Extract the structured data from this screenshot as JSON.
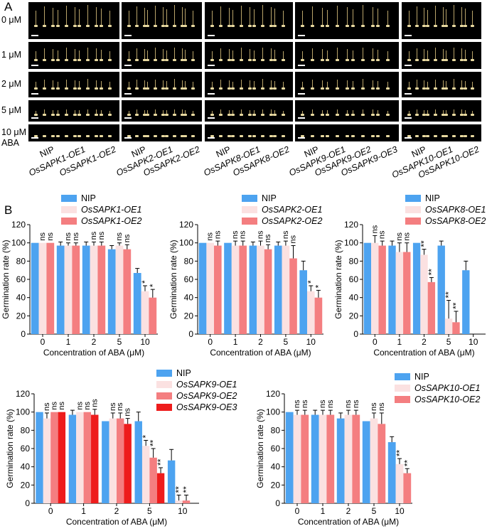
{
  "panel_a": {
    "label": "A",
    "row_labels": [
      "0 μM",
      "1 μM",
      "2 μM",
      "5 μM",
      "10 μM"
    ],
    "treatment_label": "ABA",
    "groups": [
      [
        "NIP",
        "OsSAPK1-OE1",
        "OsSAPK1-OE2"
      ],
      [
        "NIP",
        "OsSAPK2-OE1",
        "OsSAPK2-OE2"
      ],
      [
        "NIP",
        "OsSAPK8-OE1",
        "OsSAPK8-OE2"
      ],
      [
        "NIP",
        "OsSAPK9-OE1",
        "OsSAPK9-OE2",
        "OsSAPK9-OE3"
      ],
      [
        "NIP",
        "OsSAPK10-OE1",
        "OsSAPK10-OE2"
      ]
    ]
  },
  "panel_b": {
    "label": "B"
  },
  "colors": {
    "nip": "#4da3f0",
    "oe1": "#fbe1e1",
    "oe2": "#f47e80",
    "oe3": "#ee1c1c"
  },
  "chart_data": [
    {
      "type": "bar",
      "categories": [
        "0",
        "1",
        "2",
        "5",
        "10"
      ],
      "xlabel": "Concentration of ABA (μM)",
      "ylabel": "Germination rate (%)",
      "ylim": [
        0,
        120
      ],
      "yticks": [
        0,
        20,
        40,
        60,
        80,
        100,
        120
      ],
      "series": [
        {
          "name": "NIP",
          "values": [
            100,
            97,
            97,
            93,
            67
          ],
          "err": [
            0,
            4,
            4,
            4,
            5
          ]
        },
        {
          "name": "OsSAPK1-OE1",
          "values": [
            100,
            97,
            97,
            97,
            47
          ],
          "err": [
            0,
            3,
            4,
            3,
            6
          ]
        },
        {
          "name": "OsSAPK1-OE2",
          "values": [
            100,
            97,
            97,
            93,
            40
          ],
          "err": [
            0,
            3,
            4,
            5,
            9
          ]
        }
      ],
      "annotations": [
        [
          "",
          "ns",
          "ns"
        ],
        [
          "",
          "ns",
          "ns"
        ],
        [
          "",
          "ns",
          "ns"
        ],
        [
          "",
          "ns",
          "ns"
        ],
        [
          "",
          "*",
          "*"
        ]
      ]
    },
    {
      "type": "bar",
      "categories": [
        "0",
        "1",
        "2",
        "5",
        "10"
      ],
      "xlabel": "Concentration of ABA (μM)",
      "ylabel": "Germination rate (%)",
      "ylim": [
        0,
        120
      ],
      "yticks": [
        0,
        20,
        40,
        60,
        80,
        100,
        120
      ],
      "series": [
        {
          "name": "NIP",
          "values": [
            100,
            100,
            97,
            97,
            70
          ],
          "err": [
            0,
            0,
            4,
            4,
            10
          ]
        },
        {
          "name": "OsSAPK2-OE1",
          "values": [
            100,
            97,
            97,
            97,
            47
          ],
          "err": [
            0,
            5,
            5,
            5,
            6
          ]
        },
        {
          "name": "OsSAPK2-OE2",
          "values": [
            97,
            97,
            93,
            83,
            40
          ],
          "err": [
            5,
            5,
            5,
            14,
            8
          ]
        }
      ],
      "annotations": [
        [
          "",
          "ns",
          "ns"
        ],
        [
          "",
          "ns",
          "ns"
        ],
        [
          "",
          "ns",
          "ns"
        ],
        [
          "",
          "ns",
          "ns"
        ],
        [
          "",
          "*",
          "*"
        ]
      ]
    },
    {
      "type": "bar",
      "categories": [
        "0",
        "1",
        "2",
        "5",
        "10"
      ],
      "xlabel": "Concentration of ABA (μM)",
      "ylabel": "Germination rate (%)",
      "ylim": [
        0,
        120
      ],
      "yticks": [
        0,
        20,
        40,
        60,
        80,
        100,
        120
      ],
      "series": [
        {
          "name": "NIP",
          "values": [
            100,
            97,
            100,
            97,
            70
          ],
          "err": [
            0,
            5,
            0,
            5,
            10
          ]
        },
        {
          "name": "OsSAPK8-OE1",
          "values": [
            100,
            90,
            87,
            17,
            0
          ],
          "err": [
            8,
            10,
            6,
            20,
            0
          ]
        },
        {
          "name": "OsSAPK8-OE2",
          "values": [
            97,
            90,
            57,
            13,
            0
          ],
          "err": [
            5,
            10,
            5,
            12,
            0
          ]
        }
      ],
      "annotations": [
        [
          "",
          "ns",
          "ns"
        ],
        [
          "",
          "ns",
          "ns"
        ],
        [
          "",
          "**",
          "**"
        ],
        [
          "",
          "**",
          "**"
        ],
        [
          "",
          "",
          ""
        ]
      ]
    },
    {
      "type": "bar",
      "categories": [
        "0",
        "1",
        "2",
        "5",
        "10"
      ],
      "xlabel": "Concentration of ABA (μM)",
      "ylabel": "Germination rate (%)",
      "ylim": [
        0,
        120
      ],
      "yticks": [
        0,
        20,
        40,
        60,
        80,
        100,
        120
      ],
      "series": [
        {
          "name": "NIP",
          "values": [
            100,
            97,
            90,
            90,
            47
          ],
          "err": [
            0,
            5,
            0,
            10,
            12
          ]
        },
        {
          "name": "OsSAPK9-OE1",
          "values": [
            93,
            100,
            93,
            63,
            3
          ],
          "err": [
            6,
            0,
            6,
            6,
            6
          ]
        },
        {
          "name": "OsSAPK9-OE2",
          "values": [
            100,
            100,
            93,
            50,
            3
          ],
          "err": [
            0,
            0,
            6,
            10,
            6
          ]
        },
        {
          "name": "OsSAPK9-OE3",
          "values": [
            100,
            97,
            87,
            33,
            0
          ],
          "err": [
            0,
            6,
            6,
            6,
            0
          ]
        }
      ],
      "annotations": [
        [
          "",
          "ns",
          "ns",
          "ns"
        ],
        [
          "",
          "ns",
          "ns",
          "ns"
        ],
        [
          "",
          "ns",
          "ns",
          "ns"
        ],
        [
          "",
          "*",
          "**",
          "**"
        ],
        [
          "",
          "**",
          "**",
          ""
        ]
      ]
    },
    {
      "type": "bar",
      "categories": [
        "0",
        "1",
        "2",
        "5",
        "10"
      ],
      "xlabel": "Concentration of ABA (μM)",
      "ylabel": "Germination rate (%)",
      "ylim": [
        0,
        120
      ],
      "yticks": [
        0,
        20,
        40,
        60,
        80,
        100,
        120
      ],
      "series": [
        {
          "name": "NIP",
          "values": [
            100,
            97,
            93,
            90,
            67
          ],
          "err": [
            0,
            5,
            6,
            0,
            6
          ]
        },
        {
          "name": "OsSAPK10-OE1",
          "values": [
            97,
            97,
            97,
            93,
            43
          ],
          "err": [
            5,
            5,
            5,
            6,
            6
          ]
        },
        {
          "name": "OsSAPK10-OE2",
          "values": [
            97,
            97,
            97,
            87,
            33
          ],
          "err": [
            5,
            5,
            5,
            12,
            5
          ]
        }
      ],
      "annotations": [
        [
          "",
          "ns",
          "ns"
        ],
        [
          "",
          "ns",
          "ns"
        ],
        [
          "",
          "ns",
          "ns"
        ],
        [
          "",
          "ns",
          "ns"
        ],
        [
          "",
          "**",
          "**"
        ]
      ]
    }
  ]
}
